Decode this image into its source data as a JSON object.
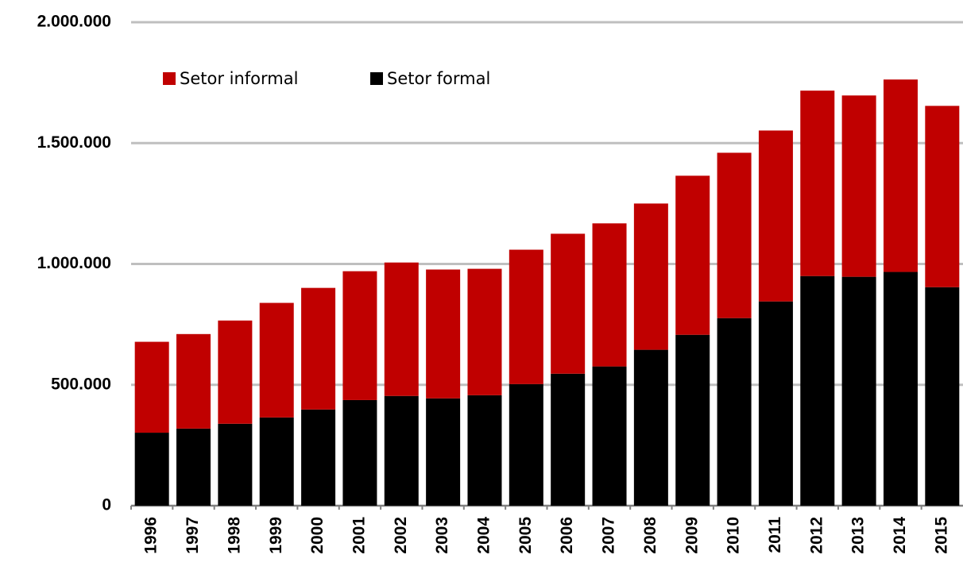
{
  "chart_data": {
    "type": "stacked_bar",
    "categories": [
      "1996",
      "1997",
      "1998",
      "1999",
      "2000",
      "2001",
      "2002",
      "2003",
      "2004",
      "2005",
      "2006",
      "2007",
      "2008",
      "2009",
      "2010",
      "2011",
      "2012",
      "2013",
      "2014",
      "2015"
    ],
    "series": [
      {
        "name": "Setor informal",
        "color": "#c00000",
        "values": [
          376000,
          391000,
          427000,
          474000,
          503000,
          533000,
          552000,
          533000,
          523000,
          556000,
          579000,
          592000,
          605000,
          658000,
          684000,
          707000,
          767000,
          750000,
          796000,
          750000
        ]
      },
      {
        "name": "Setor formal",
        "color": "#000000",
        "values": [
          302000,
          319000,
          339000,
          365000,
          398000,
          437000,
          454000,
          444000,
          457000,
          503000,
          546000,
          576000,
          645000,
          707000,
          776000,
          845000,
          950000,
          947000,
          967000,
          904000
        ]
      }
    ],
    "ylim": [
      0,
      2000000
    ],
    "yticks": [
      0,
      {
        "value": 500000,
        "label": "500.000"
      },
      {
        "value": 1000000,
        "label": "1.000.000"
      },
      {
        "value": 1500000,
        "label": "1.500.000"
      },
      {
        "value": 2000000,
        "label": "2.000.000"
      }
    ],
    "grid": true
  }
}
